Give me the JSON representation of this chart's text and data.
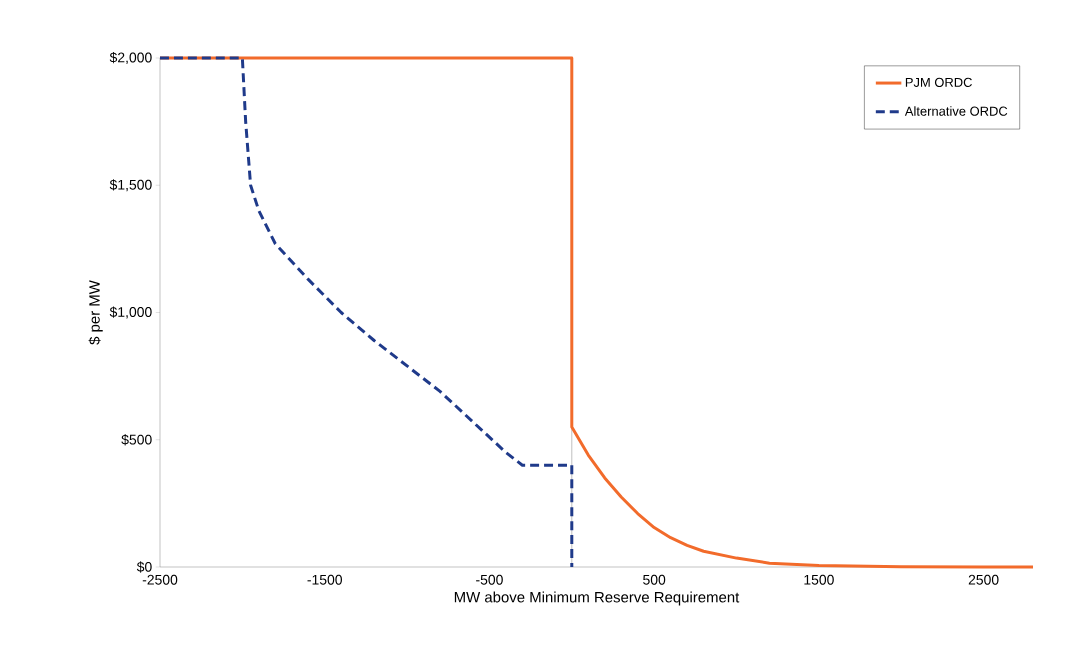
{
  "chart_data": {
    "type": "line",
    "xlabel": "MW above Minimum Reserve Requirement",
    "ylabel": "$ per MW",
    "xlim": [
      -2500,
      2800
    ],
    "ylim": [
      0,
      2000
    ],
    "xticks": [
      -2500,
      -1500,
      -500,
      500,
      1500,
      2500
    ],
    "yticks": [
      {
        "value": 0,
        "label": "$0"
      },
      {
        "value": 500,
        "label": "$500"
      },
      {
        "value": 1000,
        "label": "$1,000"
      },
      {
        "value": 1500,
        "label": "$1,500"
      },
      {
        "value": 2000,
        "label": "$2,000"
      }
    ],
    "legend": "top right",
    "grid": false,
    "marker": "none",
    "ref_lines": [
      {
        "axis": "x",
        "value": 0,
        "color": "#bfbfbf"
      }
    ],
    "series": [
      {
        "name": "PJM ORDC",
        "color": "#f26b2b",
        "line_style": "solid",
        "x": [
          -2500,
          0,
          0,
          100,
          200,
          300,
          400,
          500,
          600,
          700,
          800,
          1000,
          1200,
          1500,
          2000,
          2500,
          2800
        ],
        "values": [
          2000,
          2000,
          550,
          440,
          350,
          275,
          210,
          155,
          115,
          85,
          62,
          35,
          15,
          6,
          1,
          0,
          0
        ]
      },
      {
        "name": "Alternative ORDC",
        "color": "#1f3a8a",
        "line_style": "dashed",
        "x": [
          -2500,
          -2000,
          -1980,
          -1950,
          -1900,
          -1800,
          -1600,
          -1400,
          -1200,
          -1000,
          -800,
          -600,
          -500,
          -400,
          -300,
          0,
          0
        ],
        "values": [
          2000,
          2000,
          1750,
          1500,
          1400,
          1270,
          1130,
          1000,
          890,
          790,
          690,
          570,
          510,
          450,
          400,
          400,
          0
        ]
      }
    ]
  }
}
